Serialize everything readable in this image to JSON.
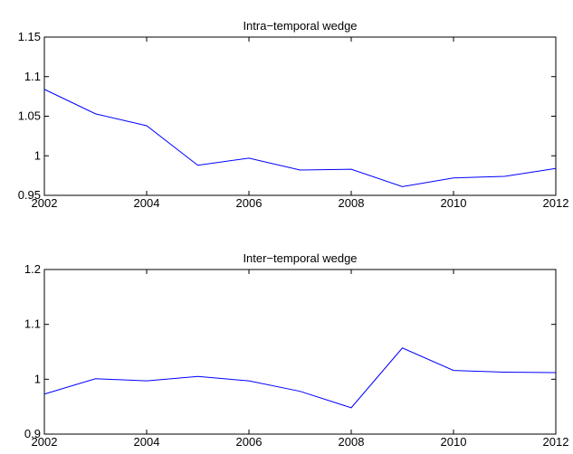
{
  "chart_data": [
    {
      "type": "line",
      "title": "Intra−temporal wedge",
      "x": [
        2002,
        2003,
        2004,
        2005,
        2006,
        2007,
        2008,
        2009,
        2010,
        2011,
        2012
      ],
      "series": [
        {
          "color": "#0000ff",
          "values": [
            1.084,
            1.053,
            1.038,
            0.988,
            0.997,
            0.982,
            0.983,
            0.961,
            0.972,
            0.974,
            0.984
          ]
        }
      ],
      "xlim": [
        2002,
        2012
      ],
      "xticks": [
        2002,
        2004,
        2006,
        2008,
        2010,
        2012
      ],
      "ylim": [
        0.95,
        1.15
      ],
      "yticks": [
        0.95,
        1,
        1.05,
        1.1,
        1.15
      ]
    },
    {
      "type": "line",
      "title": "Inter−temporal wedge",
      "x": [
        2002,
        2003,
        2004,
        2005,
        2006,
        2007,
        2008,
        2009,
        2010,
        2011,
        2012
      ],
      "series": [
        {
          "color": "#0000ff",
          "values": [
            0.973,
            1.001,
            0.997,
            1.005,
            0.997,
            0.978,
            0.948,
            1.057,
            1.016,
            1.013,
            1.012
          ]
        }
      ],
      "xlim": [
        2002,
        2012
      ],
      "xticks": [
        2002,
        2004,
        2006,
        2008,
        2010,
        2012
      ],
      "ylim": [
        0.9,
        1.2
      ],
      "yticks": [
        0.9,
        1,
        1.1,
        1.2
      ]
    }
  ]
}
